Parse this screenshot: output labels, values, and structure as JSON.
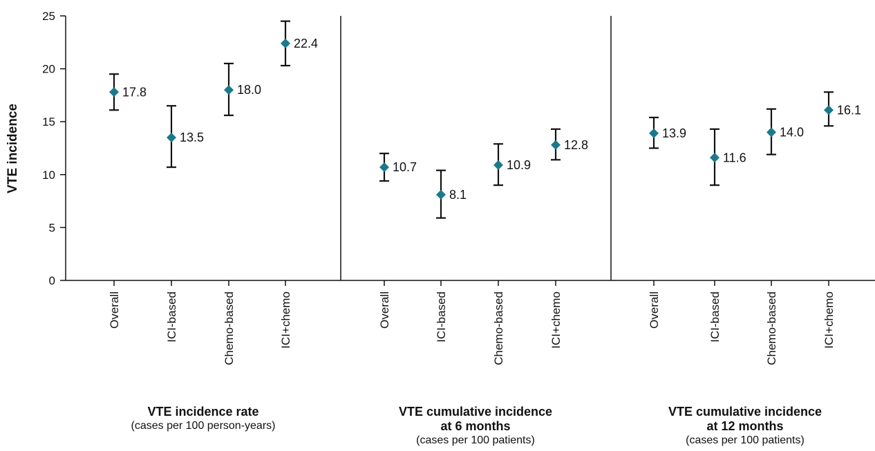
{
  "chart_data": {
    "type": "scatter",
    "ylabel": "VTE incidence",
    "ylim": [
      0,
      25
    ],
    "yticks": [
      0,
      5,
      10,
      15,
      20,
      25
    ],
    "categories": [
      "Overall",
      "ICI-based",
      "Chemo-based",
      "ICI+chemo"
    ],
    "marker_color": "#1a7a8c",
    "panels": [
      {
        "title_lines": [
          "VTE incidence rate"
        ],
        "subtitle": "(cases per 100 person-years)",
        "points": [
          {
            "category": "Overall",
            "value": 17.8,
            "label": "17.8",
            "lower": 16.1,
            "upper": 19.5
          },
          {
            "category": "ICI-based",
            "value": 13.5,
            "label": "13.5",
            "lower": 10.7,
            "upper": 16.5
          },
          {
            "category": "Chemo-based",
            "value": 18.0,
            "label": "18.0",
            "lower": 15.6,
            "upper": 20.5
          },
          {
            "category": "ICI+chemo",
            "value": 22.4,
            "label": "22.4",
            "lower": 20.3,
            "upper": 24.5
          }
        ]
      },
      {
        "title_lines": [
          "VTE cumulative incidence",
          "at 6 months"
        ],
        "subtitle": "(cases per 100 patients)",
        "points": [
          {
            "category": "Overall",
            "value": 10.7,
            "label": "10.7",
            "lower": 9.4,
            "upper": 12.0
          },
          {
            "category": "ICI-based",
            "value": 8.1,
            "label": "8.1",
            "lower": 5.9,
            "upper": 10.4
          },
          {
            "category": "Chemo-based",
            "value": 10.9,
            "label": "10.9",
            "lower": 9.0,
            "upper": 12.9
          },
          {
            "category": "ICI+chemo",
            "value": 12.8,
            "label": "12.8",
            "lower": 11.4,
            "upper": 14.3
          }
        ]
      },
      {
        "title_lines": [
          "VTE cumulative incidence",
          "at 12 months"
        ],
        "subtitle": "(cases per 100 patients)",
        "points": [
          {
            "category": "Overall",
            "value": 13.9,
            "label": "13.9",
            "lower": 12.5,
            "upper": 15.4
          },
          {
            "category": "ICI-based",
            "value": 11.6,
            "label": "11.6",
            "lower": 9.0,
            "upper": 14.3
          },
          {
            "category": "Chemo-based",
            "value": 14.0,
            "label": "14.0",
            "lower": 11.9,
            "upper": 16.2
          },
          {
            "category": "ICI+chemo",
            "value": 16.1,
            "label": "16.1",
            "lower": 14.6,
            "upper": 17.8
          }
        ]
      }
    ]
  }
}
